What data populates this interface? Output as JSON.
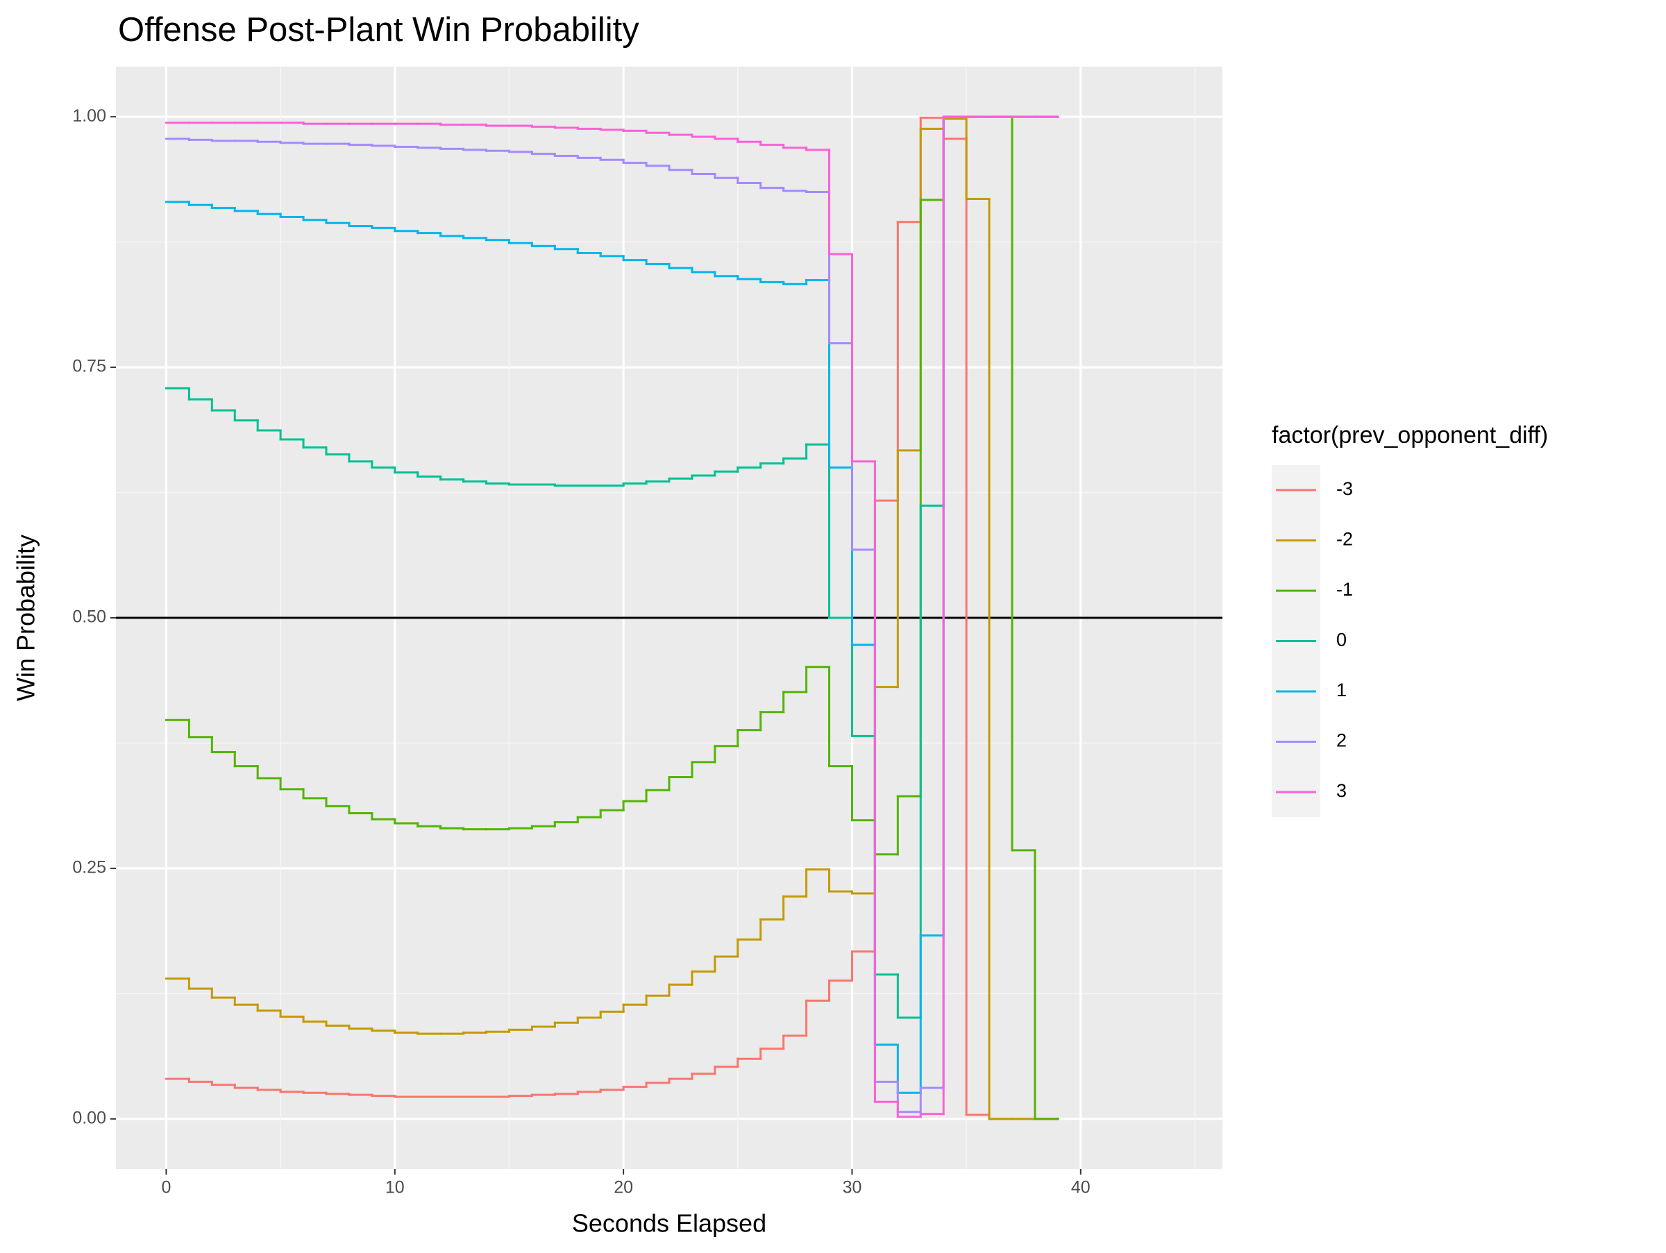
{
  "chart_data": {
    "type": "step",
    "title": "Offense Post-Plant Win Probability",
    "x_label": "Seconds Elapsed",
    "y_label": "Win Probability",
    "legend_title": "factor(prev_opponent_diff)",
    "legend_position": "right",
    "grid": true,
    "hline": 0.5,
    "xlim": [
      -2.2,
      46.2
    ],
    "xticks": [
      0,
      10,
      20,
      30,
      40
    ],
    "ylim": [
      -0.05,
      1.05
    ],
    "yticks": [
      {
        "value": 0,
        "label": "0.00"
      },
      {
        "value": 0.25,
        "label": "0.25"
      },
      {
        "value": 0.5,
        "label": "0.50"
      },
      {
        "value": 0.75,
        "label": "0.75"
      },
      {
        "value": 1,
        "label": "1.00"
      }
    ],
    "x": [
      0,
      1,
      2,
      3,
      4,
      5,
      6,
      7,
      8,
      9,
      10,
      11,
      12,
      13,
      14,
      15,
      16,
      17,
      18,
      19,
      20,
      21,
      22,
      23,
      24,
      25,
      26,
      27,
      28,
      29,
      30,
      31,
      32,
      33,
      34,
      35,
      36,
      37,
      38,
      39
    ],
    "series": [
      {
        "name": "-3",
        "color": "#F8766D",
        "values": [
          0.04,
          0.037,
          0.034,
          0.031,
          0.029,
          0.027,
          0.026,
          0.025,
          0.024,
          0.023,
          0.022,
          0.022,
          0.022,
          0.022,
          0.022,
          0.023,
          0.024,
          0.025,
          0.027,
          0.029,
          0.032,
          0.036,
          0.04,
          0.045,
          0.052,
          0.06,
          0.07,
          0.083,
          0.118,
          0.138,
          0.167,
          0.617,
          0.895,
          0.999,
          0.978,
          0.004,
          0,
          0,
          0,
          0
        ]
      },
      {
        "name": "-2",
        "color": "#C49A00",
        "values": [
          0.14,
          0.13,
          0.121,
          0.114,
          0.108,
          0.102,
          0.097,
          0.093,
          0.09,
          0.088,
          0.086,
          0.085,
          0.085,
          0.086,
          0.087,
          0.089,
          0.092,
          0.096,
          0.101,
          0.107,
          0.114,
          0.123,
          0.134,
          0.147,
          0.162,
          0.179,
          0.199,
          0.222,
          0.249,
          0.227,
          0.225,
          0.431,
          0.667,
          0.988,
          0.998,
          0.918,
          0,
          0,
          0,
          0
        ]
      },
      {
        "name": "-1",
        "color": "#53B400",
        "values": [
          0.398,
          0.381,
          0.366,
          0.352,
          0.34,
          0.329,
          0.32,
          0.312,
          0.305,
          0.299,
          0.295,
          0.292,
          0.29,
          0.289,
          0.289,
          0.29,
          0.292,
          0.296,
          0.301,
          0.308,
          0.317,
          0.328,
          0.341,
          0.356,
          0.372,
          0.388,
          0.406,
          0.426,
          0.451,
          0.352,
          0.298,
          0.264,
          0.322,
          0.917,
          1.0,
          1.0,
          1.0,
          0.268,
          0,
          0
        ]
      },
      {
        "name": "0",
        "color": "#00C094",
        "values": [
          0.729,
          0.718,
          0.707,
          0.697,
          0.687,
          0.678,
          0.67,
          0.663,
          0.656,
          0.65,
          0.645,
          0.641,
          0.638,
          0.636,
          0.634,
          0.633,
          0.633,
          0.632,
          0.632,
          0.632,
          0.634,
          0.636,
          0.639,
          0.642,
          0.646,
          0.65,
          0.654,
          0.659,
          0.673,
          0.5,
          0.382,
          0.144,
          0.101,
          0.612,
          1.0,
          1.0,
          1.0,
          1.0,
          1.0,
          1.0
        ]
      },
      {
        "name": "1",
        "color": "#00B6EB",
        "values": [
          0.915,
          0.912,
          0.909,
          0.906,
          0.903,
          0.9,
          0.897,
          0.894,
          0.891,
          0.889,
          0.886,
          0.884,
          0.881,
          0.879,
          0.877,
          0.874,
          0.871,
          0.868,
          0.864,
          0.861,
          0.857,
          0.853,
          0.849,
          0.845,
          0.841,
          0.838,
          0.835,
          0.833,
          0.837,
          0.65,
          0.473,
          0.074,
          0.026,
          0.183,
          1.0,
          1.0,
          1.0,
          1.0,
          1.0,
          1.0
        ]
      },
      {
        "name": "2",
        "color": "#A58AFF",
        "values": [
          0.978,
          0.977,
          0.976,
          0.976,
          0.975,
          0.974,
          0.973,
          0.973,
          0.972,
          0.971,
          0.97,
          0.969,
          0.968,
          0.967,
          0.966,
          0.965,
          0.963,
          0.961,
          0.959,
          0.957,
          0.954,
          0.951,
          0.947,
          0.943,
          0.939,
          0.934,
          0.929,
          0.926,
          0.925,
          0.774,
          0.568,
          0.037,
          0.007,
          0.031,
          1.0,
          1.0,
          1.0,
          1.0,
          1.0,
          1.0
        ]
      },
      {
        "name": "3",
        "color": "#FB61D7",
        "values": [
          0.994,
          0.994,
          0.994,
          0.994,
          0.994,
          0.994,
          0.993,
          0.993,
          0.993,
          0.993,
          0.993,
          0.993,
          0.992,
          0.992,
          0.991,
          0.991,
          0.99,
          0.989,
          0.988,
          0.987,
          0.986,
          0.984,
          0.982,
          0.98,
          0.978,
          0.975,
          0.972,
          0.969,
          0.967,
          0.863,
          0.656,
          0.017,
          0.002,
          0.005,
          1.0,
          1.0,
          1.0,
          1.0,
          1.0,
          1.0
        ]
      }
    ]
  }
}
